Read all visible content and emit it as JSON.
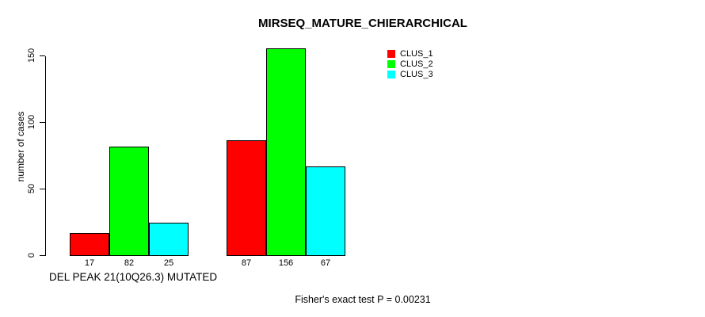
{
  "chart_data": {
    "type": "bar",
    "title": "MIRSEQ_MATURE_CHIERARCHICAL",
    "ylabel": "number of cases",
    "xlabel": "DEL PEAK 21(10Q26.3) MUTATED",
    "annotation": "Fisher's exact test P = 0.00231",
    "yticks": [
      0,
      50,
      100,
      150
    ],
    "ylim": [
      0,
      160
    ],
    "grid": false,
    "legend_position": "top-right-inside",
    "series": [
      {
        "name": "CLUS_1",
        "color": "#FF0000",
        "values": [
          17,
          87
        ]
      },
      {
        "name": "CLUS_2",
        "color": "#00FF00",
        "values": [
          82,
          156
        ]
      },
      {
        "name": "CLUS_3",
        "color": "#00FFFF",
        "values": [
          25,
          67
        ]
      }
    ],
    "groups": [
      {
        "bar_labels": [
          "17",
          "82",
          "25"
        ]
      },
      {
        "bar_labels": [
          "87",
          "156",
          "67"
        ]
      }
    ]
  }
}
